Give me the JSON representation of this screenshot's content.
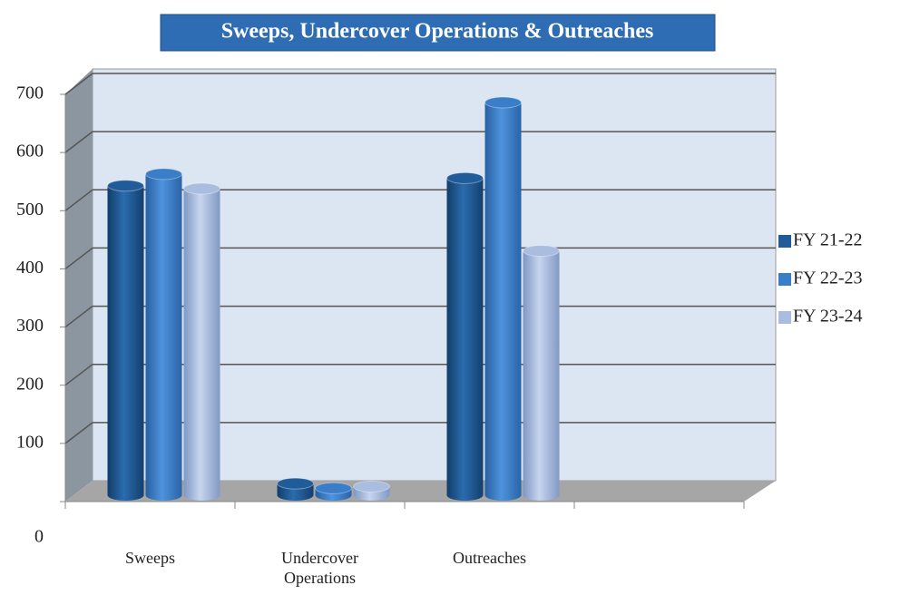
{
  "chart_data": {
    "type": "bar3d",
    "title": "Sweeps, Undercover Operations & Outreaches",
    "categories": [
      "Sweeps",
      "Undercover Operations",
      "Outreaches",
      null
    ],
    "series": [
      {
        "name": "FY 21-22",
        "color": "#1f5c99",
        "values": [
          532,
          20,
          545,
          null
        ]
      },
      {
        "name": "FY 22-23",
        "color": "#3a7dc9",
        "values": [
          552,
          12,
          675,
          null
        ]
      },
      {
        "name": "FY 23-24",
        "color": "#a9bde0",
        "values": [
          527,
          15,
          420,
          null
        ]
      }
    ],
    "ylim": [
      0,
      700
    ],
    "yticks": [
      0,
      100,
      200,
      300,
      400,
      500,
      600,
      700
    ],
    "grid": true,
    "legend": "right"
  }
}
